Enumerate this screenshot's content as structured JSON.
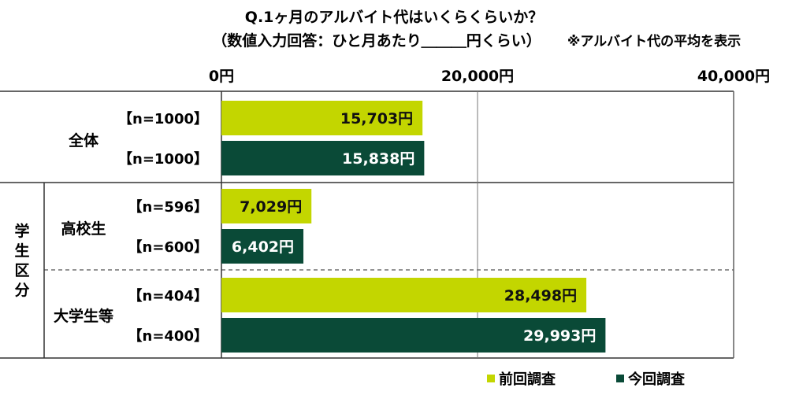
{
  "chart_data": {
    "type": "bar",
    "orientation": "horizontal",
    "title": "Q.1ヶ月のアルバイト代はいくらくらいか？",
    "subtitle": "（数値入力回答：ひと月あたり＿＿＿円くらい）",
    "note": "※アルバイト代の平均を表示",
    "xlim": [
      0,
      40000
    ],
    "x_ticks": [
      {
        "value": 0,
        "label": "0円"
      },
      {
        "value": 20000,
        "label": "20,000円"
      },
      {
        "value": 40000,
        "label": "40,000円"
      }
    ],
    "grid": true,
    "legend_position": "bottom-right",
    "group_label": "学生区分",
    "series": [
      {
        "name": "前回調査",
        "color": "#c3d600"
      },
      {
        "name": "今回調査",
        "color": "#0a4a37"
      }
    ],
    "groups": [
      {
        "label": "全体",
        "bars": [
          {
            "series": "前回調査",
            "n_label": "【n=1000】",
            "value": 15703,
            "value_label": "15,703円"
          },
          {
            "series": "今回調査",
            "n_label": "【n=1000】",
            "value": 15838,
            "value_label": "15,838円"
          }
        ]
      },
      {
        "label": "高校生",
        "bars": [
          {
            "series": "前回調査",
            "n_label": "【n=596】",
            "value": 7029,
            "value_label": "7,029円"
          },
          {
            "series": "今回調査",
            "n_label": "【n=600】",
            "value": 6402,
            "value_label": "6,402円"
          }
        ]
      },
      {
        "label": "大学生等",
        "bars": [
          {
            "series": "前回調査",
            "n_label": "【n=404】",
            "value": 28498,
            "value_label": "28,498円"
          },
          {
            "series": "今回調査",
            "n_label": "【n=400】",
            "value": 29993,
            "value_label": "29,993円"
          }
        ]
      }
    ]
  }
}
